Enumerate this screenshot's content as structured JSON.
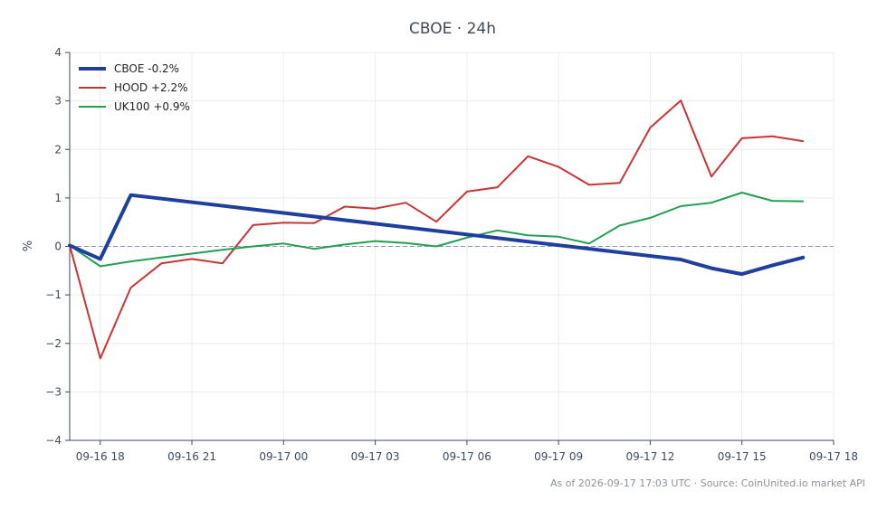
{
  "chart_data": {
    "type": "line",
    "title": "CBOE · 24h",
    "xlabel": "",
    "ylabel": "%",
    "ylim": [
      -4,
      4
    ],
    "yticks": [
      4,
      3,
      2,
      1,
      0,
      -1,
      -2,
      -3,
      -4
    ],
    "ytick_labels": [
      "4",
      "3",
      "2",
      "1",
      "0",
      "−1",
      "−2",
      "−3",
      "−4"
    ],
    "xlim": [
      "2026-09-16 17:00",
      "2026-09-17 18:00"
    ],
    "xticks": [
      "2026-09-16 18:00",
      "2026-09-16 21:00",
      "2026-09-17 00:00",
      "2026-09-17 03:00",
      "2026-09-17 06:00",
      "2026-09-17 09:00",
      "2026-09-17 12:00",
      "2026-09-17 15:00",
      "2026-09-17 18:00"
    ],
    "xtick_labels": [
      "09-16 18",
      "09-16 21",
      "09-17 00",
      "09-17 03",
      "09-17 06",
      "09-17 09",
      "09-17 12",
      "09-17 15",
      "09-17 18"
    ],
    "zero_line": true,
    "grid": true,
    "legend_position": "top-left",
    "series": [
      {
        "name": "CBOE -0.2%",
        "color": "#1f3fa0",
        "x": [
          "2026-09-16 17:00",
          "2026-09-16 18:00",
          "2026-09-16 19:00",
          "2026-09-17 13:00",
          "2026-09-17 14:00",
          "2026-09-17 15:00",
          "2026-09-17 16:00",
          "2026-09-17 17:00"
        ],
        "values": [
          0.02,
          -0.26,
          1.06,
          -0.27,
          -0.45,
          -0.57,
          -0.39,
          -0.23
        ]
      },
      {
        "name": "HOOD +2.2%",
        "color": "#cc3333",
        "x": [
          "2026-09-16 17:00",
          "2026-09-16 18:00",
          "2026-09-16 19:00",
          "2026-09-16 20:00",
          "2026-09-16 21:00",
          "2026-09-16 22:00",
          "2026-09-16 23:00",
          "2026-09-17 00:00",
          "2026-09-17 01:00",
          "2026-09-17 02:00",
          "2026-09-17 03:00",
          "2026-09-17 04:00",
          "2026-09-17 05:00",
          "2026-09-17 06:00",
          "2026-09-17 07:00",
          "2026-09-17 08:00",
          "2026-09-17 09:00",
          "2026-09-17 10:00",
          "2026-09-17 11:00",
          "2026-09-17 12:00",
          "2026-09-17 13:00",
          "2026-09-17 14:00",
          "2026-09-17 15:00",
          "2026-09-17 16:00",
          "2026-09-17 17:00"
        ],
        "values": [
          0.02,
          -2.31,
          -0.85,
          -0.35,
          -0.26,
          -0.35,
          0.44,
          0.49,
          0.48,
          0.82,
          0.78,
          0.9,
          0.51,
          1.13,
          1.22,
          1.86,
          1.64,
          1.27,
          1.31,
          2.45,
          3.01,
          1.44,
          2.23,
          2.27,
          2.17
        ]
      },
      {
        "name": "UK100 +0.9%",
        "color": "#22a052",
        "x": [
          "2026-09-16 17:00",
          "2026-09-16 18:00",
          "2026-09-16 19:00",
          "2026-09-16 20:00",
          "2026-09-16 21:00",
          "2026-09-16 22:00",
          "2026-09-16 23:00",
          "2026-09-17 00:00",
          "2026-09-17 01:00",
          "2026-09-17 02:00",
          "2026-09-17 03:00",
          "2026-09-17 04:00",
          "2026-09-17 05:00",
          "2026-09-17 06:00",
          "2026-09-17 07:00",
          "2026-09-17 08:00",
          "2026-09-17 09:00",
          "2026-09-17 10:00",
          "2026-09-17 11:00",
          "2026-09-17 12:00",
          "2026-09-17 13:00",
          "2026-09-17 14:00",
          "2026-09-17 15:00",
          "2026-09-17 16:00",
          "2026-09-17 17:00"
        ],
        "values": [
          0.02,
          -0.41,
          -0.31,
          -0.23,
          -0.15,
          -0.07,
          0.0,
          0.06,
          -0.05,
          0.04,
          0.11,
          0.07,
          0.0,
          0.18,
          0.33,
          0.23,
          0.2,
          0.06,
          0.43,
          0.59,
          0.83,
          0.9,
          1.11,
          0.94,
          0.93
        ]
      }
    ]
  },
  "footer": {
    "text": "As of 2026-09-17 17:03 UTC · Source: CoinUnited.io market API"
  }
}
